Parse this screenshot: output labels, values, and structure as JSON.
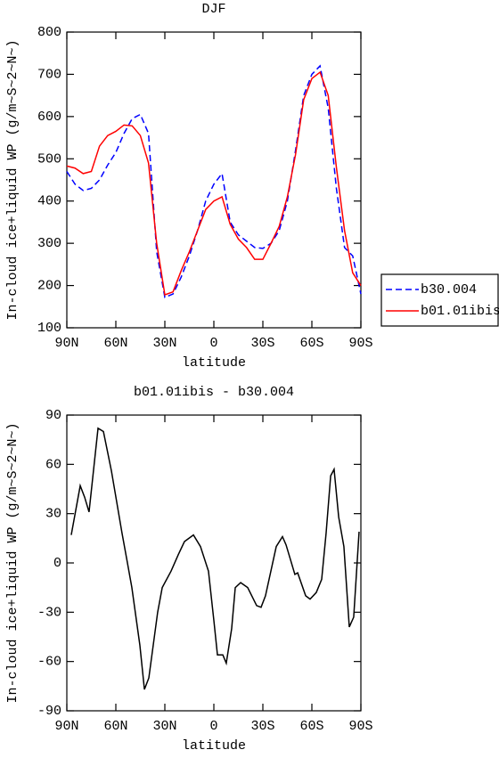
{
  "chart_data": [
    {
      "type": "line",
      "title": "DJF",
      "xlabel": "latitude",
      "ylabel": "In-cloud ice+liquid WP (g/m~S~2~N~)",
      "x": [
        90,
        85,
        80,
        75,
        70,
        65,
        60,
        55,
        50,
        45,
        40,
        35,
        30,
        25,
        20,
        15,
        10,
        5,
        0,
        -5,
        -10,
        -15,
        -20,
        -25,
        -30,
        -35,
        -40,
        -45,
        -50,
        -55,
        -60,
        -65,
        -70,
        -75,
        -80,
        -85,
        -90
      ],
      "series": [
        {
          "name": "b30.004",
          "color": "#0000ff",
          "line_style": "dashed",
          "values": [
            470,
            440,
            425,
            430,
            450,
            485,
            515,
            560,
            595,
            605,
            560,
            280,
            172,
            180,
            220,
            270,
            330,
            400,
            440,
            465,
            350,
            320,
            305,
            290,
            288,
            300,
            330,
            400,
            520,
            650,
            700,
            720,
            620,
            430,
            290,
            270,
            180
          ]
        },
        {
          "name": "b01.01ibis",
          "color": "#ff0000",
          "line_style": "solid",
          "values": [
            483,
            478,
            465,
            470,
            530,
            555,
            565,
            580,
            578,
            555,
            490,
            300,
            178,
            185,
            235,
            280,
            330,
            380,
            400,
            410,
            345,
            310,
            290,
            262,
            262,
            300,
            340,
            410,
            510,
            640,
            690,
            705,
            650,
            480,
            330,
            230,
            200
          ]
        }
      ],
      "xlim": [
        90,
        -90
      ],
      "xticks": [
        {
          "value": 90,
          "label": "90N"
        },
        {
          "value": 60,
          "label": "60N"
        },
        {
          "value": 30,
          "label": "30N"
        },
        0,
        {
          "value": -30,
          "label": "30S"
        },
        {
          "value": -60,
          "label": "60S"
        },
        {
          "value": -90,
          "label": "90S"
        }
      ],
      "ylim": [
        100,
        800
      ],
      "yticks": [
        100,
        200,
        300,
        400,
        500,
        600,
        700,
        800
      ],
      "legend": "right"
    },
    {
      "type": "line",
      "title": "b01.01ibis - b30.004",
      "xlabel": "latitude",
      "ylabel": "In-cloud ice+liquid WP (g/m~S~2~N~)",
      "x": [
        87.3,
        81.8,
        79.1,
        76.4,
        70.9,
        67.6,
        62.7,
        56.2,
        52.9,
        50.2,
        45.3,
        42.5,
        39.8,
        34.4,
        31.6,
        26.2,
        21.8,
        18.0,
        12.5,
        8.2,
        3.3,
        0,
        -2.2,
        -5.5,
        -7.6,
        -10.9,
        -13.1,
        -16.4,
        -20.7,
        -26.2,
        -28.9,
        -31.6,
        -38.2,
        -42.0,
        -44.2,
        -49.6,
        -51.3,
        -56.2,
        -58.9,
        -62.7,
        -66.0,
        -68.7,
        -71.5,
        -73.6,
        -76.4,
        -79.6,
        -82.9,
        -85.6,
        -88.9
      ],
      "series": [
        {
          "color": "#000000",
          "line_style": "solid",
          "values": [
            17,
            47,
            40,
            31,
            82,
            80,
            56,
            18,
            0,
            -15,
            -50,
            -77,
            -70,
            -30,
            -15,
            -5,
            5,
            13,
            17,
            10,
            -5,
            -35,
            -56,
            -56,
            -61,
            -40,
            -15,
            -12,
            -15,
            -26,
            -27,
            -20,
            10,
            16,
            11,
            -7,
            -6,
            -20,
            -22,
            -18,
            -10,
            18,
            53,
            57,
            28,
            10,
            -39,
            -33,
            19
          ]
        }
      ],
      "xlim": [
        90,
        -90
      ],
      "xticks": [
        {
          "value": 90,
          "label": "90N"
        },
        {
          "value": 60,
          "label": "60N"
        },
        {
          "value": 30,
          "label": "30N"
        },
        0,
        {
          "value": -30,
          "label": "30S"
        },
        {
          "value": -60,
          "label": "60S"
        },
        {
          "value": -90,
          "label": "90S"
        }
      ],
      "ylim": [
        -90,
        90
      ],
      "yticks": [
        -90,
        -60,
        -30,
        0,
        30,
        60,
        90
      ]
    }
  ]
}
